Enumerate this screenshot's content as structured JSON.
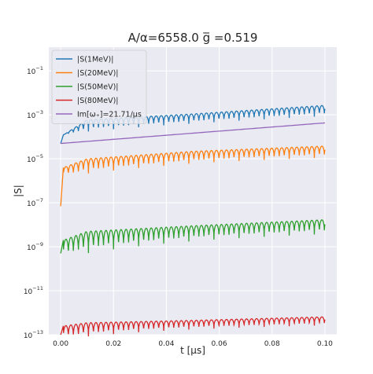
{
  "chart_data": {
    "type": "line",
    "title": "A/α=6558.0    g̅ =0.519",
    "xlabel": "t [μs]",
    "ylabel": "|S|",
    "y_scale": "log",
    "xlim": [
      -0.0045,
      0.1045
    ],
    "ylim": [
      1e-13,
      1.2
    ],
    "x_ticks": [
      0.0,
      0.02,
      0.04,
      0.06,
      0.08,
      0.1
    ],
    "x_tick_labels": [
      "0.00",
      "0.02",
      "0.04",
      "0.06",
      "0.08",
      "0.10"
    ],
    "y_ticks": [
      1e-13,
      1e-11,
      1e-09,
      1e-07,
      1e-05,
      0.001,
      0.1
    ],
    "y_tick_labels": [
      {
        "base": "10",
        "exp": "−13"
      },
      {
        "base": "10",
        "exp": "−11"
      },
      {
        "base": "10",
        "exp": "−9"
      },
      {
        "base": "10",
        "exp": "−7"
      },
      {
        "base": "10",
        "exp": "−5"
      },
      {
        "base": "10",
        "exp": "−3"
      },
      {
        "base": "10",
        "exp": "−1"
      }
    ],
    "grid": true,
    "legend_position": "top-left",
    "series": [
      {
        "name": "|S(1MeV)|",
        "color": "#1f77b4",
        "kind": "oscillating",
        "x": [
          0.0,
          0.001,
          0.01,
          0.05,
          0.1
        ],
        "y": [
          5e-05,
          0.00012,
          0.0006,
          0.0011,
          0.0027
        ],
        "dip_min": 0.00013,
        "oscillation_period": 0.0019
      },
      {
        "name": "|S(20MeV)|",
        "color": "#ff7f0e",
        "kind": "oscillating",
        "x": [
          0.0,
          0.001,
          0.01,
          0.05,
          0.1
        ],
        "y": [
          7e-08,
          4e-06,
          1e-05,
          2.2e-05,
          3.8e-05
        ],
        "dip_min": 1.5e-06,
        "oscillation_period": 0.0019
      },
      {
        "name": "|S(50MeV)|",
        "color": "#2ca02c",
        "kind": "oscillating",
        "x": [
          0.0,
          0.001,
          0.01,
          0.05,
          0.1
        ],
        "y": [
          5e-10,
          2e-09,
          5e-09,
          9e-09,
          1.7e-08
        ],
        "dip_min": 3e-10,
        "oscillation_period": 0.0019
      },
      {
        "name": "|S(80MeV)|",
        "color": "#d62728",
        "kind": "oscillating",
        "x": [
          0.0,
          0.001,
          0.01,
          0.05,
          0.1
        ],
        "y": [
          1e-13,
          2.5e-13,
          3.5e-13,
          4.5e-13,
          6.5e-13
        ],
        "dip_min": 6e-14,
        "oscillation_period": 0.0019
      },
      {
        "name": "Im[ω₊]=21.71/μs",
        "color": "#9467bd",
        "kind": "exponential",
        "x": [
          0.0,
          0.1
        ],
        "y": [
          5e-05,
          0.00043
        ]
      }
    ]
  }
}
